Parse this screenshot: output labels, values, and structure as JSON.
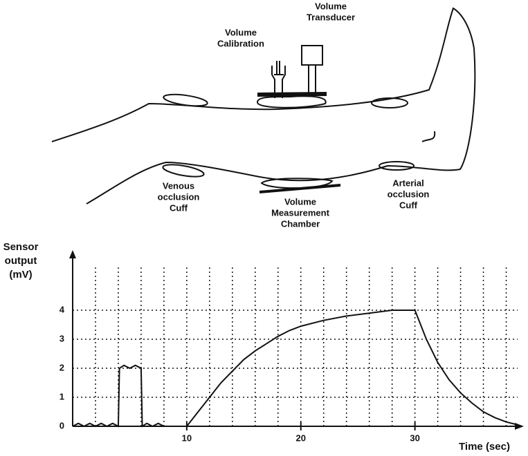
{
  "diagram": {
    "labels": {
      "volume_calibration": [
        "Volume",
        "Calibration"
      ],
      "volume_transducer": [
        "Volume",
        "Transducer"
      ],
      "venous_cuff": [
        "Venous",
        "occlusion",
        "Cuff"
      ],
      "measurement_chamber": [
        "Volume",
        "Measurement",
        "Chamber"
      ],
      "arterial_cuff": [
        "Arterial",
        "occlusion",
        "Cuff"
      ]
    }
  },
  "chart_data": {
    "type": "line",
    "y_label": [
      "Sensor",
      "output",
      "(mV)"
    ],
    "x_label": "Time (sec)",
    "xlim": [
      0,
      39
    ],
    "ylim": [
      0,
      5.5
    ],
    "xticks": [
      10,
      20,
      30
    ],
    "yticks": [
      0,
      1,
      2,
      3,
      4
    ],
    "grid": true,
    "color": "#111111",
    "series": [
      {
        "name": "Sensor output",
        "x": [
          0,
          0.5,
          1,
          1.5,
          2,
          2.5,
          3,
          3.5,
          4,
          4.1,
          4.5,
          5,
          5.5,
          6,
          6.1,
          6.5,
          7,
          7.5,
          8,
          9,
          10,
          11,
          12,
          13,
          14,
          15,
          16,
          17,
          18,
          19,
          20,
          22,
          24,
          26,
          28,
          30,
          31,
          32,
          33,
          34,
          35,
          36,
          37,
          38,
          39
        ],
        "values": [
          0,
          0.1,
          0,
          0.1,
          0,
          0.1,
          0,
          0.1,
          0,
          2,
          2.1,
          2,
          2.1,
          2,
          0,
          0.1,
          0,
          0.1,
          0,
          0,
          0,
          0.5,
          1.0,
          1.5,
          1.9,
          2.3,
          2.6,
          2.85,
          3.1,
          3.3,
          3.45,
          3.65,
          3.8,
          3.9,
          4.0,
          4.0,
          3.0,
          2.2,
          1.6,
          1.15,
          0.8,
          0.5,
          0.3,
          0.15,
          0.05
        ]
      }
    ]
  }
}
